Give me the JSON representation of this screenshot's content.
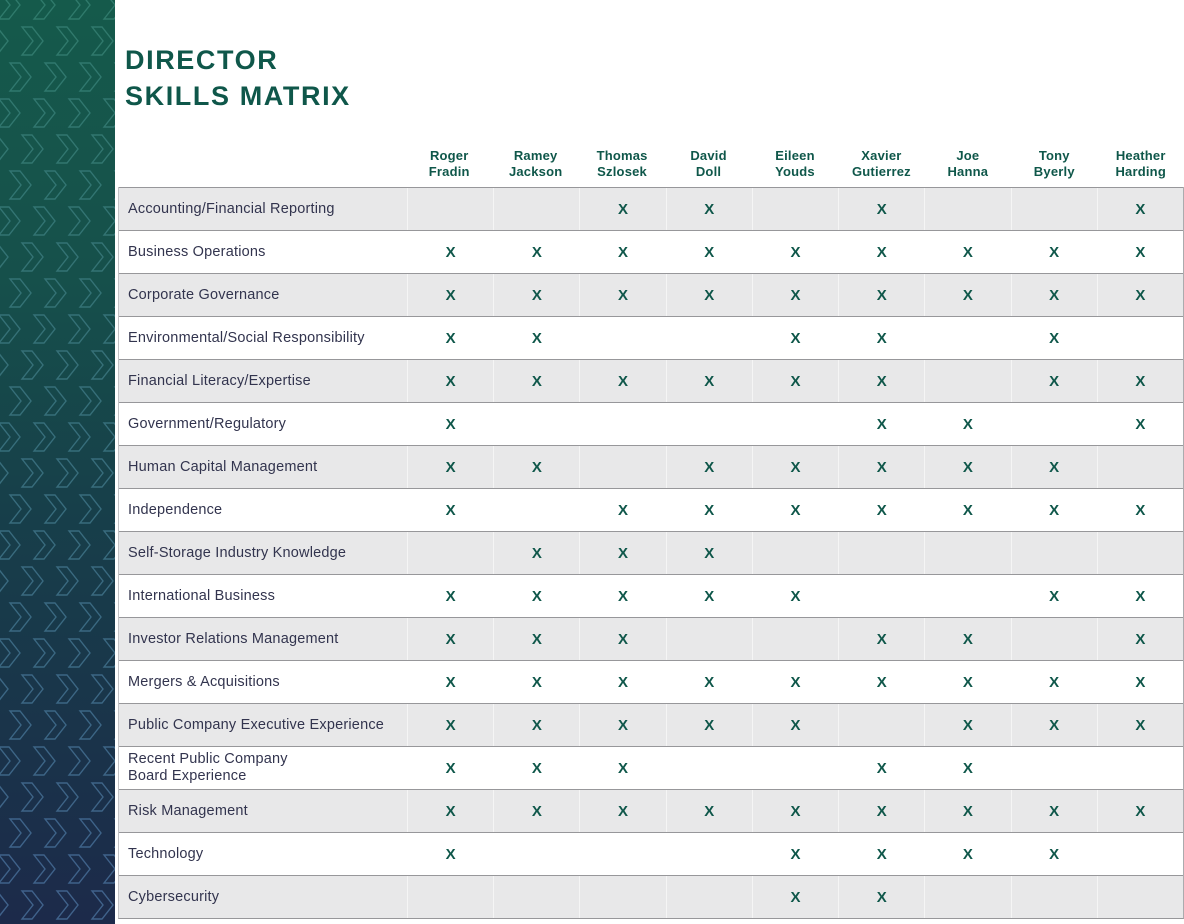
{
  "page": {
    "title": "DIRECTOR\nSKILLS MATRIX"
  },
  "colors": {
    "accent_teal": "#0F574A",
    "text_navy": "#32344E",
    "row_gray": "#E8E8E9",
    "row_white": "#FFFFFF",
    "border_gray": "#97979A",
    "sidebar_gradient_top": "#155A4B",
    "sidebar_gradient_bottom": "#1C2A4A",
    "chevron_stroke_top": "#2F7A6B",
    "chevron_stroke_bottom": "#40618C",
    "x_mark_color": "#0F574A"
  },
  "icons": {
    "sidebar_pattern": "chevron-right-icon"
  },
  "matrix": {
    "mark": "X",
    "directors": [
      {
        "line1": "Roger",
        "line2": "Fradin"
      },
      {
        "line1": "Ramey",
        "line2": "Jackson"
      },
      {
        "line1": "Thomas",
        "line2": "Szlosek"
      },
      {
        "line1": "David",
        "line2": "Doll"
      },
      {
        "line1": "Eileen",
        "line2": "Youds"
      },
      {
        "line1": "Xavier",
        "line2": "Gutierrez"
      },
      {
        "line1": "Joe",
        "line2": "Hanna"
      },
      {
        "line1": "Tony",
        "line2": "Byerly"
      },
      {
        "line1": "Heather",
        "line2": "Harding"
      }
    ],
    "skills": [
      {
        "label": "Accounting/Financial Reporting",
        "marks": [
          0,
          0,
          1,
          1,
          0,
          1,
          0,
          0,
          1
        ]
      },
      {
        "label": "Business Operations",
        "marks": [
          1,
          1,
          1,
          1,
          1,
          1,
          1,
          1,
          1
        ]
      },
      {
        "label": "Corporate Governance",
        "marks": [
          1,
          1,
          1,
          1,
          1,
          1,
          1,
          1,
          1
        ]
      },
      {
        "label": "Environmental/Social Responsibility",
        "marks": [
          1,
          1,
          0,
          0,
          1,
          1,
          0,
          1,
          0
        ]
      },
      {
        "label": "Financial Literacy/Expertise",
        "marks": [
          1,
          1,
          1,
          1,
          1,
          1,
          0,
          1,
          1
        ]
      },
      {
        "label": "Government/Regulatory",
        "marks": [
          1,
          0,
          0,
          0,
          0,
          1,
          1,
          0,
          1
        ]
      },
      {
        "label": "Human Capital Management",
        "marks": [
          1,
          1,
          0,
          1,
          1,
          1,
          1,
          1,
          0
        ]
      },
      {
        "label": "Independence",
        "marks": [
          1,
          0,
          1,
          1,
          1,
          1,
          1,
          1,
          1
        ]
      },
      {
        "label": "Self-Storage Industry Knowledge",
        "marks": [
          0,
          1,
          1,
          1,
          0,
          0,
          0,
          0,
          0
        ]
      },
      {
        "label": "International Business",
        "marks": [
          1,
          1,
          1,
          1,
          1,
          0,
          0,
          1,
          1
        ]
      },
      {
        "label": "Investor Relations Management",
        "marks": [
          1,
          1,
          1,
          0,
          0,
          1,
          1,
          0,
          1
        ]
      },
      {
        "label": "Mergers & Acquisitions",
        "marks": [
          1,
          1,
          1,
          1,
          1,
          1,
          1,
          1,
          1
        ]
      },
      {
        "label": "Public Company Executive Experience",
        "marks": [
          1,
          1,
          1,
          1,
          1,
          0,
          1,
          1,
          1
        ]
      },
      {
        "label": "Recent Public Company\nBoard Experience",
        "marks": [
          1,
          1,
          1,
          0,
          0,
          1,
          1,
          0,
          0
        ]
      },
      {
        "label": "Risk Management",
        "marks": [
          1,
          1,
          1,
          1,
          1,
          1,
          1,
          1,
          1
        ]
      },
      {
        "label": "Technology",
        "marks": [
          1,
          0,
          0,
          0,
          1,
          1,
          1,
          1,
          0
        ]
      },
      {
        "label": "Cybersecurity",
        "marks": [
          0,
          0,
          0,
          0,
          1,
          1,
          0,
          0,
          0
        ]
      }
    ]
  }
}
